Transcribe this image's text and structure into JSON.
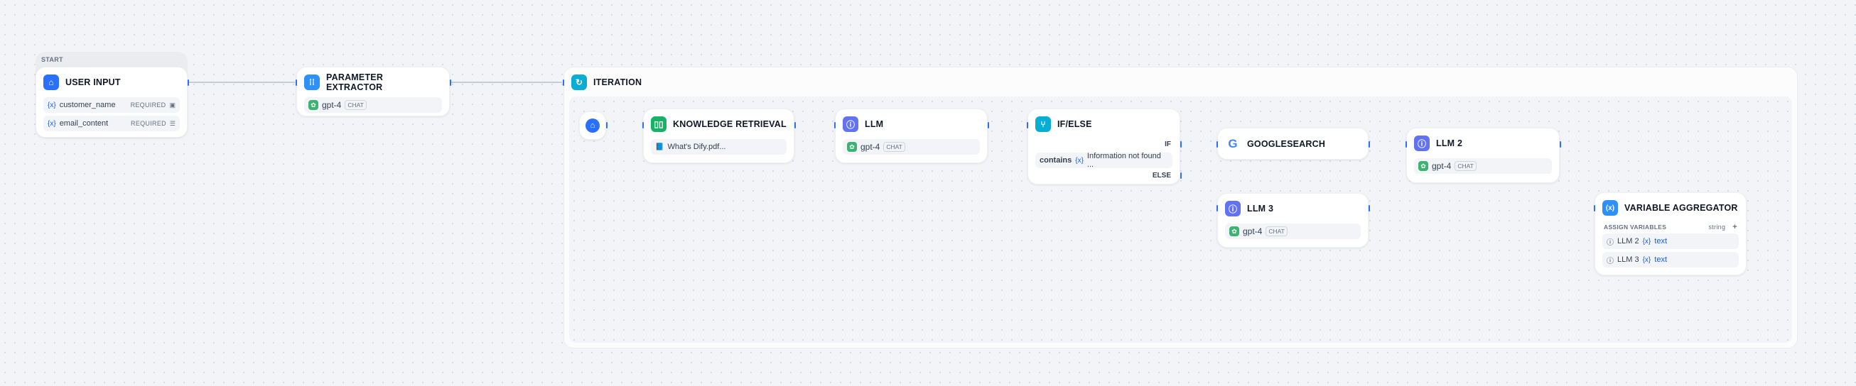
{
  "start_group": {
    "label": "START"
  },
  "user_input": {
    "title": "USER INPUT",
    "icon": "home-icon",
    "color": "#2970ff",
    "variables": [
      {
        "name": "customer_name",
        "required": "REQUIRED",
        "type_icon": "text-input-icon"
      },
      {
        "name": "email_content",
        "required": "REQUIRED",
        "type_icon": "paragraph-icon"
      }
    ]
  },
  "parameter_extractor": {
    "title": "PARAMETER EXTRACTOR",
    "color": "#2e90fa",
    "model": "gpt-4",
    "mode": "CHAT"
  },
  "iteration": {
    "title": "ITERATION",
    "color": "#06aed4"
  },
  "knowledge_retrieval": {
    "title": "KNOWLEDGE RETRIEVAL",
    "color": "#16b364",
    "dataset": "What's Dify.pdf..."
  },
  "llm": {
    "title": "LLM",
    "color": "#6172f3",
    "model": "gpt-4",
    "mode": "CHAT"
  },
  "if_else": {
    "title": "IF/ELSE",
    "color": "#06aed4",
    "if_label": "IF",
    "else_label": "ELSE",
    "operator": "contains",
    "value": "Information not found ..."
  },
  "googlesearch": {
    "title": "GOOGLESEARCH"
  },
  "llm2": {
    "title": "LLM 2",
    "color": "#6172f3",
    "model": "gpt-4",
    "mode": "CHAT"
  },
  "llm3": {
    "title": "LLM 3",
    "color": "#6172f3",
    "model": "gpt-4",
    "mode": "CHAT"
  },
  "variable_aggregator": {
    "title": "VARIABLE AGGREGATOR",
    "color": "#2e90fa",
    "section": "ASSIGN VARIABLES",
    "type": "string",
    "add": "+",
    "items": [
      {
        "node": "LLM 2",
        "var": "text"
      },
      {
        "node": "LLM 3",
        "var": "text"
      }
    ]
  },
  "var_symbol": "{x}"
}
